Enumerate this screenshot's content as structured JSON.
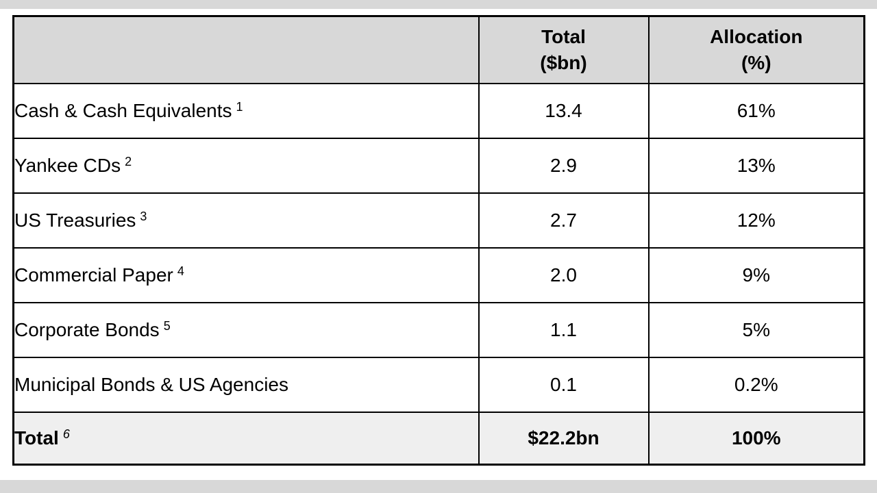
{
  "page": {
    "background": "#ffffff",
    "top_strip_color": "#d8d8d8",
    "bottom_strip_color": "#d8d8d8"
  },
  "table": {
    "colors": {
      "header_bg": "#d8d8d8",
      "total_row_bg": "#efefef",
      "border": "#000000"
    },
    "header": {
      "col1": "",
      "col2_line1": "Total",
      "col2_line2": "($bn)",
      "col3_line1": "Allocation",
      "col3_line2": "(%)"
    },
    "rows": [
      {
        "label": "Cash & Cash Equivalents",
        "footnote": "1",
        "total": "13.4",
        "allocation": "61%"
      },
      {
        "label": "Yankee CDs",
        "footnote": "2",
        "total": "2.9",
        "allocation": "13%"
      },
      {
        "label": "US Treasuries",
        "footnote": "3",
        "total": "2.7",
        "allocation": "12%"
      },
      {
        "label": "Commercial Paper",
        "footnote": "4",
        "total": "2.0",
        "allocation": "9%"
      },
      {
        "label": "Corporate Bonds",
        "footnote": "5",
        "total": "1.1",
        "allocation": "5%"
      },
      {
        "label": "Municipal Bonds & US Agencies",
        "footnote": "",
        "total": "0.1",
        "allocation": "0.2%"
      }
    ],
    "total_row": {
      "label": "Total",
      "footnote": "6",
      "total": "$22.2bn",
      "allocation": "100%"
    }
  },
  "chart_data": {
    "type": "table",
    "title": "",
    "columns": [
      "",
      "Total ($bn)",
      "Allocation (%)"
    ],
    "categories": [
      "Cash & Cash Equivalents",
      "Yankee CDs",
      "US Treasuries",
      "Commercial Paper",
      "Corporate Bonds",
      "Municipal Bonds & US Agencies"
    ],
    "series": [
      {
        "name": "Total ($bn)",
        "values": [
          13.4,
          2.9,
          2.7,
          2.0,
          1.1,
          0.1
        ]
      },
      {
        "name": "Allocation (%)",
        "values": [
          61,
          13,
          12,
          9,
          5,
          0.2
        ]
      }
    ],
    "footnote_markers": [
      "1",
      "2",
      "3",
      "4",
      "5",
      ""
    ],
    "total": {
      "label": "Total",
      "footnote_marker": "6",
      "total_value": "$22.2bn",
      "allocation_value": "100%"
    }
  }
}
